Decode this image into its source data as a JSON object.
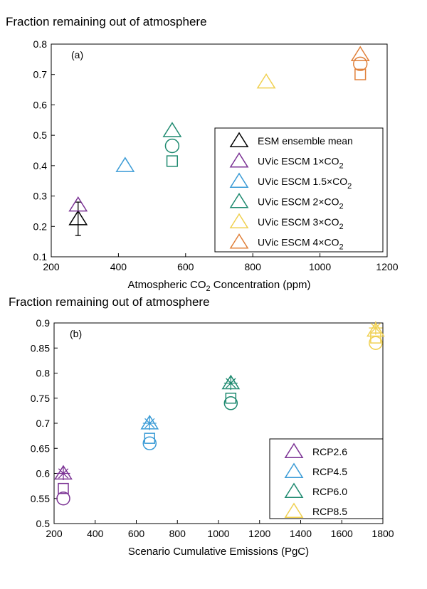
{
  "chart_data": [
    {
      "type": "scatter",
      "title": "Fraction remaining out of atmosphere",
      "panel_label": "(a)",
      "xlabel": "Atmospheric CO",
      "xlabel_sub": "2",
      "xlabel_tail": " Concentration (ppm)",
      "xlim": [
        200,
        1200
      ],
      "ylim": [
        0.1,
        0.8
      ],
      "xticks": [
        200,
        400,
        600,
        800,
        1000,
        1200
      ],
      "yticks": [
        0.1,
        0.2,
        0.3,
        0.4,
        0.5,
        0.6,
        0.7,
        0.8
      ],
      "grid": false,
      "legend_position": "bottom-right",
      "markers_note": "triangle, circle and square markers",
      "series": [
        {
          "name": "ESM ensemble mean",
          "name_sub": "",
          "color": "#000000",
          "points": [
            {
              "x": 280,
              "y": 0.225,
              "marker": "triangle",
              "err": [
                0.17,
                0.28
              ]
            }
          ]
        },
        {
          "name": "UVic ESCM 1×CO",
          "name_sub": "2",
          "color": "#7b3294",
          "points": [
            {
              "x": 280,
              "y": 0.27,
              "marker": "triangle"
            }
          ]
        },
        {
          "name": "UVic ESCM 1.5×CO",
          "name_sub": "2",
          "color": "#3a9bd6",
          "points": [
            {
              "x": 420,
              "y": 0.4,
              "marker": "triangle"
            }
          ]
        },
        {
          "name": "UVic ESCM 2×CO",
          "name_sub": "2",
          "color": "#1f8a70",
          "points": [
            {
              "x": 560,
              "y": 0.515,
              "marker": "triangle"
            },
            {
              "x": 560,
              "y": 0.465,
              "marker": "circle"
            },
            {
              "x": 560,
              "y": 0.415,
              "marker": "square"
            }
          ]
        },
        {
          "name": "UVic ESCM 3×CO",
          "name_sub": "2",
          "color": "#f0d050",
          "points": [
            {
              "x": 840,
              "y": 0.675,
              "marker": "triangle"
            }
          ]
        },
        {
          "name": "UVic ESCM 4×CO",
          "name_sub": "2",
          "color": "#e0803a",
          "points": [
            {
              "x": 1120,
              "y": 0.765,
              "marker": "triangle"
            },
            {
              "x": 1120,
              "y": 0.735,
              "marker": "circle"
            },
            {
              "x": 1120,
              "y": 0.7,
              "marker": "square"
            }
          ]
        }
      ]
    },
    {
      "type": "scatter",
      "title": "Fraction remaining out of atmosphere",
      "panel_label": "(b)",
      "xlabel": "Scenario Cumulative Emissions (PgC)",
      "xlabel_sub": "",
      "xlabel_tail": "",
      "xlim": [
        200,
        1800
      ],
      "ylim": [
        0.5,
        0.9
      ],
      "xticks": [
        200,
        400,
        600,
        800,
        1000,
        1200,
        1400,
        1600,
        1800
      ],
      "yticks": [
        0.5,
        0.55,
        0.6,
        0.65,
        0.7,
        0.75,
        0.8,
        0.85,
        0.9
      ],
      "grid": false,
      "legend_position": "bottom-right",
      "series": [
        {
          "name": "RCP2.6",
          "name_sub": "",
          "color": "#7b3294",
          "points": [
            {
              "x": 245,
              "y": 0.6,
              "marker": "star"
            },
            {
              "x": 245,
              "y": 0.6,
              "marker": "triangle"
            },
            {
              "x": 245,
              "y": 0.57,
              "marker": "square"
            },
            {
              "x": 245,
              "y": 0.55,
              "marker": "circle"
            }
          ]
        },
        {
          "name": "RCP4.5",
          "name_sub": "",
          "color": "#3a9bd6",
          "points": [
            {
              "x": 665,
              "y": 0.7,
              "marker": "star"
            },
            {
              "x": 665,
              "y": 0.7,
              "marker": "triangle"
            },
            {
              "x": 665,
              "y": 0.67,
              "marker": "square"
            },
            {
              "x": 665,
              "y": 0.66,
              "marker": "circle"
            }
          ]
        },
        {
          "name": "RCP6.0",
          "name_sub": "",
          "color": "#1f8a70",
          "points": [
            {
              "x": 1060,
              "y": 0.78,
              "marker": "star"
            },
            {
              "x": 1060,
              "y": 0.78,
              "marker": "triangle"
            },
            {
              "x": 1060,
              "y": 0.75,
              "marker": "square"
            },
            {
              "x": 1060,
              "y": 0.74,
              "marker": "circle"
            }
          ]
        },
        {
          "name": "RCP8.5",
          "name_sub": "",
          "color": "#f0d050",
          "points": [
            {
              "x": 1765,
              "y": 0.89,
              "marker": "star"
            },
            {
              "x": 1765,
              "y": 0.885,
              "marker": "triangle"
            },
            {
              "x": 1765,
              "y": 0.87,
              "marker": "square"
            },
            {
              "x": 1765,
              "y": 0.86,
              "marker": "circle"
            }
          ]
        }
      ]
    }
  ]
}
